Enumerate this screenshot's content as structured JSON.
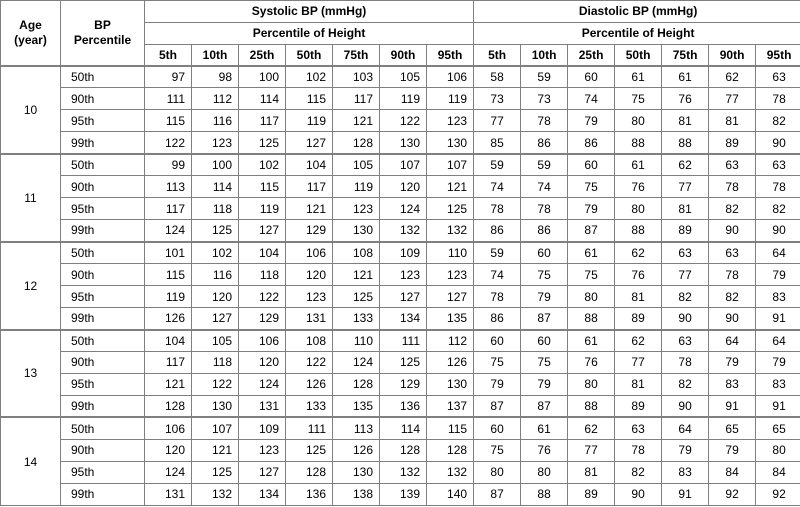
{
  "headers": {
    "age": "Age\n(year)",
    "age_line1": "Age",
    "age_line2": "(year)",
    "bp_line1": "BP",
    "bp_line2": "Percentile",
    "systolic": "Systolic BP (mmHg)",
    "diastolic": "Diastolic BP (mmHg)",
    "sys_sub": "Percentile of Height",
    "dia_sub": "Percentile of Height",
    "height_cols": [
      "5th",
      "10th",
      "25th",
      "50th",
      "75th",
      "90th",
      "95th"
    ]
  },
  "groups": [
    {
      "age": "10",
      "rows": [
        {
          "pct": "50th",
          "sys": [
            "97",
            "98",
            "100",
            "102",
            "103",
            "105",
            "106"
          ],
          "dia": [
            "58",
            "59",
            "60",
            "61",
            "61",
            "62",
            "63"
          ]
        },
        {
          "pct": "90th",
          "sys": [
            "111",
            "112",
            "114",
            "115",
            "117",
            "119",
            "119"
          ],
          "dia": [
            "73",
            "73",
            "74",
            "75",
            "76",
            "77",
            "78"
          ]
        },
        {
          "pct": "95th",
          "sys": [
            "115",
            "116",
            "117",
            "119",
            "121",
            "122",
            "123"
          ],
          "dia": [
            "77",
            "78",
            "79",
            "80",
            "81",
            "81",
            "82"
          ]
        },
        {
          "pct": "99th",
          "sys": [
            "122",
            "123",
            "125",
            "127",
            "128",
            "130",
            "130"
          ],
          "dia": [
            "85",
            "86",
            "86",
            "88",
            "88",
            "89",
            "90"
          ]
        }
      ]
    },
    {
      "age": "11",
      "rows": [
        {
          "pct": "50th",
          "sys": [
            "99",
            "100",
            "102",
            "104",
            "105",
            "107",
            "107"
          ],
          "dia": [
            "59",
            "59",
            "60",
            "61",
            "62",
            "63",
            "63"
          ]
        },
        {
          "pct": "90th",
          "sys": [
            "113",
            "114",
            "115",
            "117",
            "119",
            "120",
            "121"
          ],
          "dia": [
            "74",
            "74",
            "75",
            "76",
            "77",
            "78",
            "78"
          ]
        },
        {
          "pct": "95th",
          "sys": [
            "117",
            "118",
            "119",
            "121",
            "123",
            "124",
            "125"
          ],
          "dia": [
            "78",
            "78",
            "79",
            "80",
            "81",
            "82",
            "82"
          ]
        },
        {
          "pct": "99th",
          "sys": [
            "124",
            "125",
            "127",
            "129",
            "130",
            "132",
            "132"
          ],
          "dia": [
            "86",
            "86",
            "87",
            "88",
            "89",
            "90",
            "90"
          ]
        }
      ]
    },
    {
      "age": "12",
      "rows": [
        {
          "pct": "50th",
          "sys": [
            "101",
            "102",
            "104",
            "106",
            "108",
            "109",
            "110"
          ],
          "dia": [
            "59",
            "60",
            "61",
            "62",
            "63",
            "63",
            "64"
          ]
        },
        {
          "pct": "90th",
          "sys": [
            "115",
            "116",
            "118",
            "120",
            "121",
            "123",
            "123"
          ],
          "dia": [
            "74",
            "75",
            "75",
            "76",
            "77",
            "78",
            "79"
          ]
        },
        {
          "pct": "95th",
          "sys": [
            "119",
            "120",
            "122",
            "123",
            "125",
            "127",
            "127"
          ],
          "dia": [
            "78",
            "79",
            "80",
            "81",
            "82",
            "82",
            "83"
          ]
        },
        {
          "pct": "99th",
          "sys": [
            "126",
            "127",
            "129",
            "131",
            "133",
            "134",
            "135"
          ],
          "dia": [
            "86",
            "87",
            "88",
            "89",
            "90",
            "90",
            "91"
          ]
        }
      ]
    },
    {
      "age": "13",
      "rows": [
        {
          "pct": "50th",
          "sys": [
            "104",
            "105",
            "106",
            "108",
            "110",
            "111",
            "112"
          ],
          "dia": [
            "60",
            "60",
            "61",
            "62",
            "63",
            "64",
            "64"
          ]
        },
        {
          "pct": "90th",
          "sys": [
            "117",
            "118",
            "120",
            "122",
            "124",
            "125",
            "126"
          ],
          "dia": [
            "75",
            "75",
            "76",
            "77",
            "78",
            "79",
            "79"
          ]
        },
        {
          "pct": "95th",
          "sys": [
            "121",
            "122",
            "124",
            "126",
            "128",
            "129",
            "130"
          ],
          "dia": [
            "79",
            "79",
            "80",
            "81",
            "82",
            "83",
            "83"
          ]
        },
        {
          "pct": "99th",
          "sys": [
            "128",
            "130",
            "131",
            "133",
            "135",
            "136",
            "137"
          ],
          "dia": [
            "87",
            "87",
            "88",
            "89",
            "90",
            "91",
            "91"
          ]
        }
      ]
    },
    {
      "age": "14",
      "rows": [
        {
          "pct": "50th",
          "sys": [
            "106",
            "107",
            "109",
            "111",
            "113",
            "114",
            "115"
          ],
          "dia": [
            "60",
            "61",
            "62",
            "63",
            "64",
            "65",
            "65"
          ]
        },
        {
          "pct": "90th",
          "sys": [
            "120",
            "121",
            "123",
            "125",
            "126",
            "128",
            "128"
          ],
          "dia": [
            "75",
            "76",
            "77",
            "78",
            "79",
            "79",
            "80"
          ]
        },
        {
          "pct": "95th",
          "sys": [
            "124",
            "125",
            "127",
            "128",
            "130",
            "132",
            "132"
          ],
          "dia": [
            "80",
            "80",
            "81",
            "82",
            "83",
            "84",
            "84"
          ]
        },
        {
          "pct": "99th",
          "sys": [
            "131",
            "132",
            "134",
            "136",
            "138",
            "139",
            "140"
          ],
          "dia": [
            "87",
            "88",
            "89",
            "90",
            "91",
            "92",
            "92"
          ]
        }
      ]
    }
  ]
}
